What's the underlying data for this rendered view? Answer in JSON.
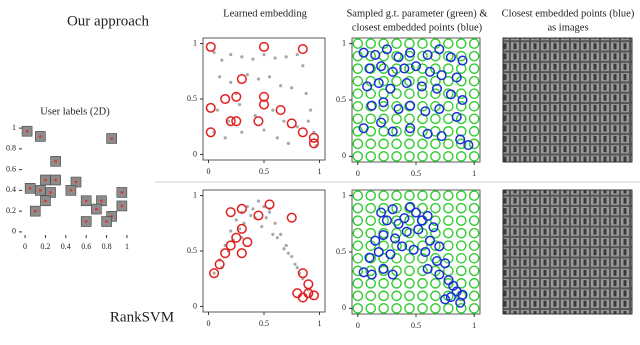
{
  "labels": {
    "top_row": "Our approach",
    "bottom_row": "RankSVM",
    "user_title": "User labels (2D)",
    "col1": "Learned embedding",
    "col2_line1": "Sampled g.t. parameter (green) &",
    "col2_line2": "closest embedded points (blue)",
    "col3_line1": "Closest embedded points (blue)",
    "col3_line2": "as images"
  },
  "chart_data": [
    {
      "type": "scatter",
      "xlim": [
        -0.03,
        1.03
      ],
      "ylim": [
        -0.03,
        1.03
      ],
      "xticks": [
        0,
        0.2,
        0.4,
        0.6,
        0.8,
        1
      ],
      "yticks": [
        0,
        0.2,
        0.4,
        0.6,
        0.8,
        1
      ],
      "series": [
        {
          "marker": "thumb",
          "color": "#e03030",
          "x": [
            0.02,
            0.15,
            0.85,
            0.3,
            0.2,
            0.3,
            0.5,
            0.05,
            0.15,
            0.25,
            0.45,
            0.95,
            0.1,
            0.2,
            0.6,
            0.75,
            0.95,
            0.7,
            0.85,
            0.6,
            0.8
          ],
          "y": [
            0.97,
            0.92,
            0.9,
            0.68,
            0.5,
            0.5,
            0.48,
            0.42,
            0.4,
            0.38,
            0.4,
            0.38,
            0.2,
            0.3,
            0.3,
            0.3,
            0.25,
            0.22,
            0.15,
            0.1,
            0.1
          ]
        }
      ]
    },
    {
      "type": "scatter",
      "xlim": [
        -0.05,
        1.05
      ],
      "ylim": [
        -0.05,
        1.05
      ],
      "xticks": [
        0,
        0.5,
        1
      ],
      "yticks": [
        0,
        0.5,
        1
      ],
      "series": [
        {
          "marker": "dot",
          "color": "#a8a8a8",
          "x": [
            0.05,
            0.12,
            0.2,
            0.3,
            0.4,
            0.5,
            0.6,
            0.7,
            0.8,
            0.85,
            0.1,
            0.2,
            0.35,
            0.45,
            0.55,
            0.65,
            0.75,
            0.88,
            0.92,
            0.95,
            0.08,
            0.18,
            0.28,
            0.42,
            0.58,
            0.68,
            0.8,
            0.9,
            0.15,
            0.3,
            0.5,
            0.62,
            0.72,
            0.97,
            0.05,
            0.25
          ],
          "y": [
            0.92,
            0.85,
            0.9,
            0.88,
            0.86,
            0.9,
            0.87,
            0.88,
            0.9,
            0.8,
            0.7,
            0.65,
            0.72,
            0.68,
            0.7,
            0.62,
            0.6,
            0.55,
            0.4,
            0.2,
            0.4,
            0.3,
            0.45,
            0.35,
            0.4,
            0.3,
            0.25,
            0.3,
            0.15,
            0.2,
            0.22,
            0.15,
            0.1,
            0.08,
            0.2,
            0.55
          ]
        },
        {
          "marker": "circle",
          "color": "#e02020",
          "x": [
            0.02,
            0.5,
            0.85,
            0.3,
            0.25,
            0.15,
            0.5,
            0.5,
            0.02,
            0.65,
            0.2,
            0.25,
            0.45,
            0.75,
            0.95,
            0.02,
            0.85,
            0.95
          ],
          "y": [
            0.97,
            0.97,
            0.95,
            0.68,
            0.52,
            0.5,
            0.52,
            0.45,
            0.42,
            0.4,
            0.3,
            0.3,
            0.3,
            0.28,
            0.15,
            0.2,
            0.2,
            0.1
          ]
        }
      ]
    },
    {
      "type": "scatter",
      "xlim": [
        -0.05,
        1.05
      ],
      "ylim": [
        -0.05,
        1.05
      ],
      "xticks": [
        0,
        0.5,
        1
      ],
      "yticks": [
        0,
        0.5,
        1
      ],
      "grid": {
        "color": "#33cc33",
        "values": [
          0,
          0.111,
          0.222,
          0.333,
          0.444,
          0.556,
          0.667,
          0.778,
          0.889,
          1
        ]
      },
      "series": [
        {
          "marker": "circle",
          "color": "#1a2ed8",
          "x": [
            0.05,
            0.15,
            0.25,
            0.35,
            0.45,
            0.6,
            0.7,
            0.8,
            0.9,
            0.1,
            0.2,
            0.3,
            0.4,
            0.5,
            0.62,
            0.72,
            0.85,
            0.08,
            0.18,
            0.28,
            0.42,
            0.55,
            0.68,
            0.8,
            0.9,
            0.12,
            0.22,
            0.35,
            0.45,
            0.58,
            0.7,
            0.85,
            0.05,
            0.2,
            0.3,
            0.45,
            0.6,
            0.72,
            0.88,
            0.95
          ],
          "y": [
            0.92,
            0.9,
            0.95,
            0.88,
            0.92,
            0.9,
            0.95,
            0.88,
            0.85,
            0.78,
            0.8,
            0.75,
            0.78,
            0.8,
            0.75,
            0.72,
            0.7,
            0.62,
            0.65,
            0.6,
            0.65,
            0.62,
            0.6,
            0.55,
            0.5,
            0.45,
            0.48,
            0.42,
            0.45,
            0.4,
            0.42,
            0.35,
            0.25,
            0.3,
            0.22,
            0.25,
            0.2,
            0.18,
            0.15,
            0.1
          ]
        }
      ]
    },
    {
      "type": "scatter",
      "xlim": [
        -0.05,
        1.05
      ],
      "ylim": [
        -0.05,
        1.05
      ],
      "xticks": [
        0,
        0.5,
        1
      ],
      "yticks": [
        0,
        0.5,
        1
      ],
      "series": [
        {
          "marker": "dot",
          "color": "#a8a8a8",
          "x": [
            0.05,
            0.1,
            0.15,
            0.2,
            0.25,
            0.3,
            0.35,
            0.4,
            0.45,
            0.5,
            0.55,
            0.6,
            0.65,
            0.7,
            0.75,
            0.8,
            0.85,
            0.9,
            0.12,
            0.22,
            0.32,
            0.42,
            0.52,
            0.62,
            0.72,
            0.82,
            0.92,
            0.18,
            0.28,
            0.38,
            0.48,
            0.58,
            0.68,
            0.78,
            0.3,
            0.55
          ],
          "y": [
            0.3,
            0.42,
            0.55,
            0.68,
            0.78,
            0.85,
            0.9,
            0.88,
            0.95,
            0.9,
            0.85,
            0.75,
            0.65,
            0.55,
            0.45,
            0.35,
            0.25,
            0.15,
            0.35,
            0.6,
            0.75,
            0.8,
            0.8,
            0.62,
            0.48,
            0.3,
            0.1,
            0.5,
            0.7,
            0.82,
            0.72,
            0.65,
            0.52,
            0.38,
            0.62,
            0.88
          ]
        },
        {
          "marker": "circle",
          "color": "#e02020",
          "x": [
            0.2,
            0.3,
            0.45,
            0.55,
            0.75,
            0.3,
            0.25,
            0.2,
            0.35,
            0.3,
            0.15,
            0.1,
            0.05,
            0.85,
            0.9,
            0.9,
            0.95,
            0.8,
            0.85
          ],
          "y": [
            0.85,
            0.88,
            0.82,
            0.92,
            0.8,
            0.7,
            0.62,
            0.55,
            0.58,
            0.48,
            0.48,
            0.38,
            0.3,
            0.3,
            0.2,
            0.12,
            0.1,
            0.12,
            0.08
          ]
        }
      ]
    },
    {
      "type": "scatter",
      "xlim": [
        -0.05,
        1.05
      ],
      "ylim": [
        -0.05,
        1.05
      ],
      "xticks": [
        0,
        0.5,
        1
      ],
      "yticks": [
        0,
        0.5,
        1
      ],
      "grid": {
        "color": "#33cc33",
        "values": [
          0,
          0.111,
          0.222,
          0.333,
          0.444,
          0.556,
          0.667,
          0.778,
          0.889,
          1
        ]
      },
      "series": [
        {
          "marker": "circle",
          "color": "#1a2ed8",
          "x": [
            0.2,
            0.25,
            0.3,
            0.35,
            0.4,
            0.45,
            0.5,
            0.55,
            0.6,
            0.65,
            0.15,
            0.22,
            0.32,
            0.42,
            0.52,
            0.62,
            0.7,
            0.1,
            0.18,
            0.28,
            0.38,
            0.48,
            0.58,
            0.68,
            0.75,
            0.05,
            0.12,
            0.22,
            0.3,
            0.6,
            0.7,
            0.78,
            0.82,
            0.85,
            0.9,
            0.75,
            0.8,
            0.88
          ],
          "y": [
            0.85,
            0.78,
            0.88,
            0.75,
            0.8,
            0.9,
            0.85,
            0.78,
            0.82,
            0.72,
            0.6,
            0.65,
            0.62,
            0.68,
            0.7,
            0.6,
            0.55,
            0.45,
            0.5,
            0.48,
            0.55,
            0.52,
            0.5,
            0.42,
            0.4,
            0.32,
            0.3,
            0.35,
            0.3,
            0.35,
            0.3,
            0.25,
            0.2,
            0.15,
            0.12,
            0.08,
            0.1,
            0.05
          ]
        }
      ]
    }
  ]
}
